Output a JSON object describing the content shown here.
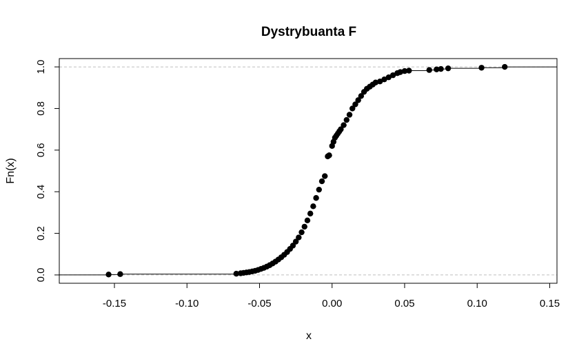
{
  "chart_data": {
    "type": "scatter",
    "title": "Dystrybuanta F",
    "xlabel": "x",
    "ylabel": "Fn(x)",
    "xlim": [
      -0.188,
      0.155
    ],
    "ylim": [
      -0.04,
      1.04
    ],
    "x_ticks": [
      -0.15,
      -0.1,
      -0.05,
      0.0,
      0.05,
      0.1,
      0.15
    ],
    "x_tick_labels": [
      "-0.15",
      "-0.10",
      "-0.05",
      "0.00",
      "0.05",
      "0.10",
      "0.15"
    ],
    "y_ticks": [
      0.0,
      0.2,
      0.4,
      0.6,
      0.8,
      1.0
    ],
    "y_tick_labels": [
      "0.0",
      "0.2",
      "0.4",
      "0.6",
      "0.8",
      "1.0"
    ],
    "reference_lines_y": [
      0,
      1
    ],
    "grid": false,
    "series": [
      {
        "type": "step",
        "x": [
          -0.154,
          -0.146,
          -0.066,
          -0.063,
          -0.061,
          -0.059,
          -0.057,
          -0.055,
          -0.053,
          -0.051,
          -0.049,
          -0.047,
          -0.045,
          -0.043,
          -0.041,
          -0.039,
          -0.037,
          -0.035,
          -0.033,
          -0.031,
          -0.029,
          -0.027,
          -0.025,
          -0.023,
          -0.021,
          -0.019,
          -0.017,
          -0.015,
          -0.013,
          -0.011,
          -0.009,
          -0.007,
          -0.005,
          -0.003,
          -0.002,
          0.0,
          0.001,
          0.002,
          0.003,
          0.004,
          0.005,
          0.006,
          0.008,
          0.01,
          0.012,
          0.014,
          0.016,
          0.018,
          0.02,
          0.022,
          0.024,
          0.026,
          0.028,
          0.03,
          0.033,
          0.036,
          0.039,
          0.042,
          0.045,
          0.047,
          0.05,
          0.053,
          0.067,
          0.072,
          0.075,
          0.08,
          0.103,
          0.119
        ],
        "y": [
          0.002,
          0.004,
          0.006,
          0.008,
          0.01,
          0.012,
          0.014,
          0.017,
          0.02,
          0.024,
          0.029,
          0.034,
          0.04,
          0.047,
          0.055,
          0.064,
          0.074,
          0.085,
          0.097,
          0.11,
          0.125,
          0.141,
          0.16,
          0.18,
          0.205,
          0.232,
          0.262,
          0.295,
          0.33,
          0.37,
          0.41,
          0.45,
          0.475,
          0.57,
          0.575,
          0.62,
          0.64,
          0.66,
          0.67,
          0.68,
          0.69,
          0.7,
          0.72,
          0.745,
          0.77,
          0.8,
          0.82,
          0.84,
          0.86,
          0.88,
          0.895,
          0.905,
          0.915,
          0.925,
          0.93,
          0.94,
          0.95,
          0.96,
          0.97,
          0.975,
          0.98,
          0.982,
          0.985,
          0.988,
          0.99,
          0.993,
          0.996,
          1.0
        ]
      }
    ]
  }
}
